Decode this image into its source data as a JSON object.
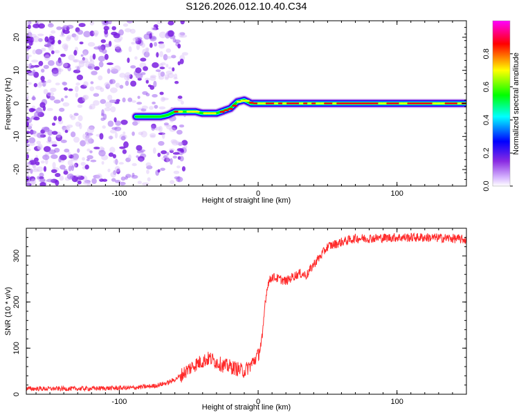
{
  "title": "S126.2026.012.10.40.C34",
  "chart_data": [
    {
      "type": "heatmap",
      "xlabel": "Height of straight line (km)",
      "ylabel": "Frequency (Hz)",
      "xlim": [
        -167,
        150
      ],
      "ylim": [
        -25,
        25
      ],
      "xticks": [
        -100,
        0,
        100
      ],
      "yticks": [
        -20,
        -10,
        0,
        10,
        20
      ],
      "xtick_labels": [
        "-100",
        "0",
        "100"
      ],
      "ytick_labels": [
        "-20",
        "-10",
        "0",
        "10",
        "20"
      ],
      "colorbar": {
        "label": "Normalized spectral amplitude",
        "range": [
          0,
          1
        ],
        "ticks": [
          0,
          0.2,
          0.4,
          0.6,
          0.8
        ],
        "tick_labels": [
          "0.0",
          "0.2",
          "0.4",
          "0.6",
          "0.8"
        ],
        "colors": [
          "#ffffff",
          "#d8b8ff",
          "#8a2be2",
          "#0000ff",
          "#00ffff",
          "#00ff00",
          "#ffff00",
          "#ff0000",
          "#ff00ff"
        ]
      },
      "ridge": {
        "x": [
          -88,
          -70,
          -65,
          -60,
          -55,
          -45,
          -40,
          -30,
          -20,
          -15,
          -10,
          -5,
          0,
          20,
          40,
          60,
          80,
          100,
          120,
          140,
          150
        ],
        "y": [
          -4,
          -4,
          -3.5,
          -2.5,
          -2.5,
          -2.5,
          -3,
          -3,
          -1.5,
          0.5,
          1,
          0,
          0,
          0,
          0,
          0,
          0,
          0,
          0,
          0,
          0
        ],
        "amplitude": [
          0.5,
          0.5,
          0.6,
          0.75,
          0.8,
          0.8,
          0.7,
          0.75,
          0.8,
          0.85,
          0.85,
          0.9,
          0.9,
          0.9,
          0.9,
          0.9,
          0.9,
          0.9,
          0.9,
          0.9,
          0.9
        ]
      },
      "noise_region_x": [
        -167,
        -67
      ]
    },
    {
      "type": "line",
      "xlabel": "Height of straight line (km)",
      "ylabel": "SNR (10 * v/v)",
      "xlim": [
        -167,
        150
      ],
      "ylim": [
        0,
        360
      ],
      "xticks": [
        -100,
        0,
        100
      ],
      "yticks": [
        0,
        100,
        200,
        300
      ],
      "xtick_labels": [
        "-100",
        "0",
        "100"
      ],
      "ytick_labels": [
        "0",
        "100",
        "200",
        "300"
      ],
      "color": "#ff2a2a",
      "series": [
        {
          "name": "SNR",
          "x": [
            -167,
            -150,
            -130,
            -110,
            -90,
            -75,
            -65,
            -60,
            -55,
            -50,
            -45,
            -40,
            -35,
            -30,
            -25,
            -20,
            -15,
            -10,
            -5,
            0,
            3,
            5,
            7,
            10,
            15,
            20,
            25,
            30,
            35,
            40,
            45,
            50,
            60,
            70,
            80,
            100,
            120,
            140,
            150
          ],
          "y": [
            12,
            12,
            12,
            13,
            14,
            18,
            25,
            32,
            42,
            55,
            65,
            72,
            78,
            70,
            62,
            60,
            55,
            50,
            65,
            85,
            120,
            200,
            240,
            255,
            250,
            245,
            255,
            262,
            258,
            282,
            300,
            320,
            330,
            338,
            338,
            340,
            340,
            338,
            335
          ]
        }
      ]
    }
  ]
}
